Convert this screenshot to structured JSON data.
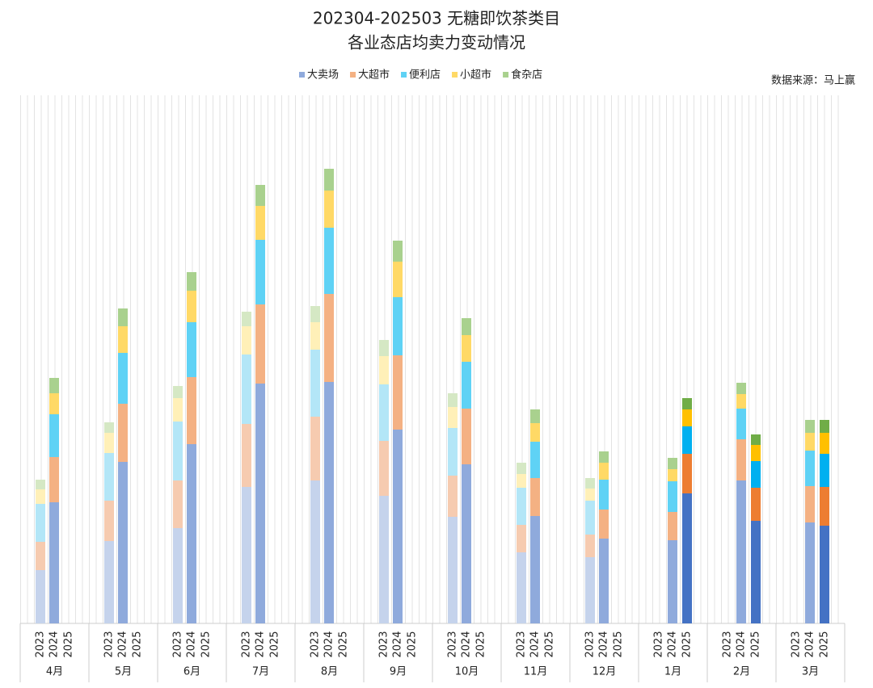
{
  "chart_data": {
    "type": "stacked-bar",
    "title": "202304-202503 无糖即饮茶类目",
    "subtitle": "各业态店均卖力变动情况",
    "source": "数据来源：马上赢",
    "categories": [
      "4月",
      "5月",
      "6月",
      "7月",
      "8月",
      "9月",
      "10月",
      "11月",
      "12月",
      "1月",
      "2月",
      "3月"
    ],
    "years": [
      "2023",
      "2024",
      "2025"
    ],
    "series": [
      {
        "name": "大卖场",
        "colors": [
          "#c5d3ec",
          "#8faadc",
          "#4472c4"
        ],
        "values": [
          [
            66,
            150,
            null
          ],
          [
            102,
            200,
            null
          ],
          [
            118,
            222,
            null
          ],
          [
            169,
            297,
            null
          ],
          [
            177,
            299,
            null
          ],
          [
            158,
            240,
            null
          ],
          [
            132,
            197,
            null
          ],
          [
            88,
            133,
            null
          ],
          [
            82,
            105,
            null
          ],
          [
            null,
            103,
            161
          ],
          [
            null,
            177,
            127
          ],
          [
            null,
            125,
            121
          ]
        ]
      },
      {
        "name": "大超市",
        "colors": [
          "#f6cbb0",
          "#f4b183",
          "#ed7d31"
        ],
        "values": [
          [
            35,
            56,
            null
          ],
          [
            50,
            72,
            null
          ],
          [
            59,
            83,
            null
          ],
          [
            78,
            98,
            null
          ],
          [
            79,
            109,
            null
          ],
          [
            68,
            92,
            null
          ],
          [
            51,
            69,
            null
          ],
          [
            34,
            47,
            null
          ],
          [
            28,
            36,
            null
          ],
          [
            null,
            35,
            49
          ],
          [
            null,
            51,
            41
          ],
          [
            null,
            45,
            48
          ]
        ]
      },
      {
        "name": "便利店",
        "colors": [
          "#b3e6f7",
          "#5fd2f5",
          "#00b0f0"
        ],
        "values": [
          [
            47,
            53,
            null
          ],
          [
            59,
            63,
            null
          ],
          [
            73,
            68,
            null
          ],
          [
            86,
            80,
            null
          ],
          [
            83,
            82,
            null
          ],
          [
            70,
            72,
            null
          ],
          [
            59,
            58,
            null
          ],
          [
            46,
            45,
            null
          ],
          [
            42,
            37,
            null
          ],
          [
            null,
            38,
            34
          ],
          [
            null,
            38,
            33
          ],
          [
            null,
            44,
            41
          ]
        ]
      },
      {
        "name": "小超市",
        "colors": [
          "#fff0b8",
          "#ffd966",
          "#ffc000"
        ],
        "values": [
          [
            18,
            26,
            null
          ],
          [
            25,
            33,
            null
          ],
          [
            29,
            39,
            null
          ],
          [
            35,
            42,
            null
          ],
          [
            34,
            46,
            null
          ],
          [
            35,
            44,
            null
          ],
          [
            26,
            33,
            null
          ],
          [
            17,
            23,
            null
          ],
          [
            15,
            21,
            null
          ],
          [
            null,
            15,
            21
          ],
          [
            null,
            18,
            20
          ],
          [
            null,
            22,
            26
          ]
        ]
      },
      {
        "name": "食杂店",
        "colors": [
          "#d5e8c4",
          "#a9d18e",
          "#70ad47"
        ],
        "values": [
          [
            12,
            19,
            null
          ],
          [
            13,
            22,
            null
          ],
          [
            15,
            23,
            null
          ],
          [
            18,
            26,
            null
          ],
          [
            20,
            27,
            null
          ],
          [
            20,
            26,
            null
          ],
          [
            17,
            21,
            null
          ],
          [
            14,
            17,
            null
          ],
          [
            13,
            14,
            null
          ],
          [
            null,
            14,
            14
          ],
          [
            null,
            14,
            13
          ],
          [
            null,
            16,
            16
          ]
        ]
      }
    ]
  }
}
